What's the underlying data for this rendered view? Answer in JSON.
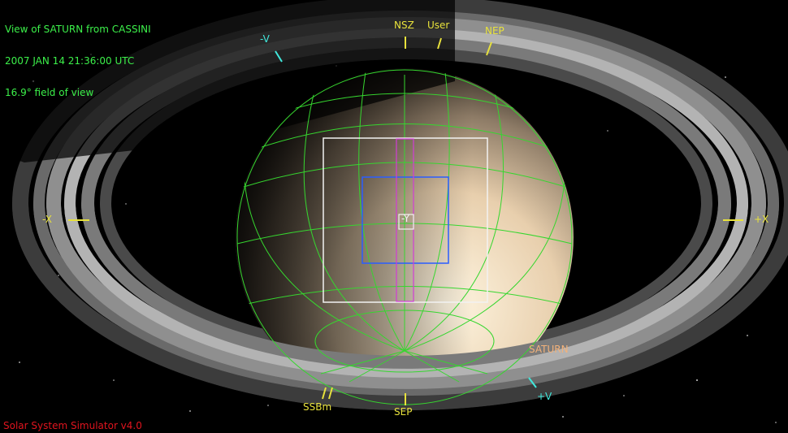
{
  "hud": {
    "line1": "View of SATURN from CASSINI",
    "line2": "2007 JAN 14 21:36:00 UTC",
    "line3": "16.9° field of view"
  },
  "footer": {
    "label": "Solar System Simulator v4.0"
  },
  "labels": {
    "minus_v": "-V",
    "plus_v": "+V",
    "minus_x": "-X",
    "plus_x": "+X",
    "nsz": "NSZ",
    "user": "User",
    "nep": "NEP",
    "sep": "SEP",
    "ssbm": "SSBm",
    "y": "-Y",
    "saturn": "SATURN"
  },
  "colors": {
    "grid": "#36d62f",
    "axis": "#e8e23c",
    "fov_white": "#f2f2f2",
    "fov_blue": "#2a5dff",
    "fov_magenta": "#d23cd6",
    "hud": "#3cf04a",
    "footer": "#e0141e",
    "saturn_label": "#f3b27a"
  }
}
